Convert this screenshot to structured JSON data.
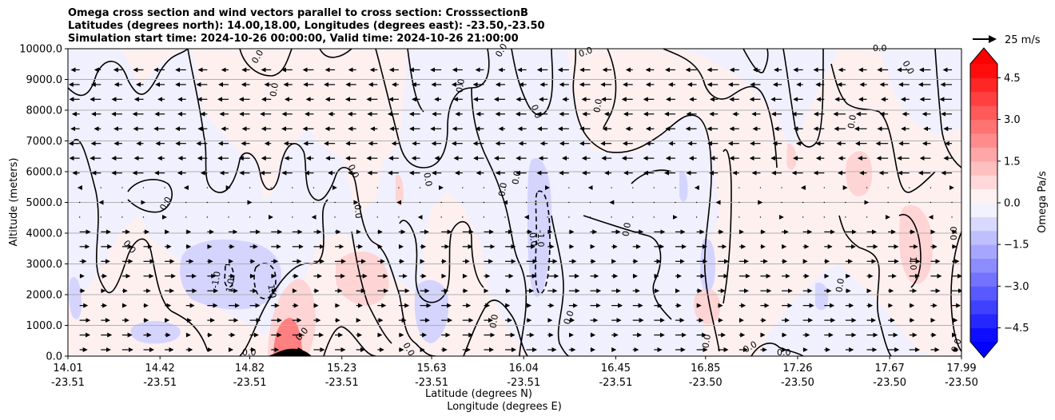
{
  "header": {
    "title_line1": "Omega cross section and wind vectors parallel to cross section: CrosssectionB",
    "title_line2": "Latitudes (degrees north): 14.00,18.00, Longitudes (degrees east): -23.50,-23.50",
    "title_line3": "Simulation start time: 2024-10-26 00:00:00, Valid time: 2024-10-26 21:00:00"
  },
  "chart_data": {
    "type": "heatmap",
    "ylabel": "Altitude (meters)",
    "xlabel_lat": "Latitude (degrees N)",
    "xlabel_lon": "Longitude (degrees E)",
    "ylim": [
      0,
      10000
    ],
    "y_ticks": [
      "0.0",
      "1000.0",
      "2000.0",
      "3000.0",
      "4000.0",
      "5000.0",
      "6000.0",
      "7000.0",
      "8000.0",
      "9000.0",
      "10000.0"
    ],
    "x_ticks": [
      {
        "lat": "14.01",
        "lon": "-23.51"
      },
      {
        "lat": "14.42",
        "lon": "-23.51"
      },
      {
        "lat": "14.82",
        "lon": "-23.51"
      },
      {
        "lat": "15.23",
        "lon": "-23.51"
      },
      {
        "lat": "15.63",
        "lon": "-23.51"
      },
      {
        "lat": "16.04",
        "lon": "-23.51"
      },
      {
        "lat": "16.45",
        "lon": "-23.51"
      },
      {
        "lat": "16.85",
        "lon": "-23.50"
      },
      {
        "lat": "17.26",
        "lon": "-23.50"
      },
      {
        "lat": "17.67",
        "lon": "-23.50"
      },
      {
        "lat": "17.99",
        "lon": "-23.50"
      }
    ],
    "grid": "horizontal",
    "colorbar": {
      "label": "Omega Pa/s",
      "ticks": [
        "4.5",
        "3.0",
        "1.5",
        "0.0",
        "−1.5",
        "−3.0",
        "−4.5"
      ],
      "tick_values": [
        4.5,
        3.0,
        1.5,
        0.0,
        -1.5,
        -3.0,
        -4.5
      ],
      "range": [
        -5.0,
        5.0
      ],
      "extend": "both",
      "levels": [
        -5.0,
        -4.5,
        -4.0,
        -3.5,
        -3.0,
        -2.5,
        -2.0,
        -1.5,
        -1.0,
        -0.5,
        0.0,
        0.5,
        1.0,
        1.5,
        2.0,
        2.5,
        3.0,
        3.5,
        4.0,
        4.5,
        5.0
      ]
    },
    "quiver_key": {
      "label": "25 m/s"
    },
    "contour_labels": [
      "0.0",
      "-1.0",
      "1.0"
    ],
    "colors": {
      "pos_weak": "#fff0f0",
      "pos_mid": "#ffd4d4",
      "pos_strong": "#ff8080",
      "neg_weak": "#f0f0ff",
      "neg_mid": "#d4d4ff",
      "grid": "#b0b0b0",
      "terrain": "#000000"
    }
  }
}
